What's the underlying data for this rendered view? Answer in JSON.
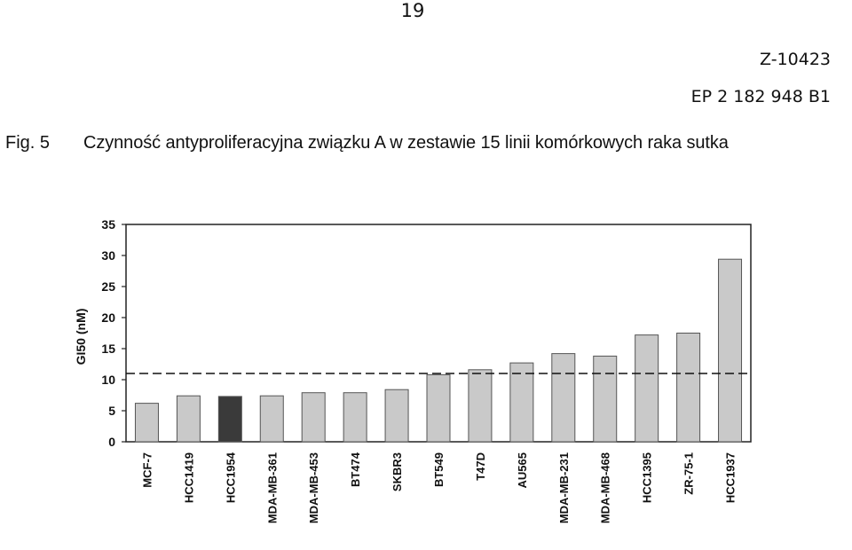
{
  "header": {
    "page_number": "19",
    "doc_code": "Z-10423",
    "patent_number": "EP 2 182 948 B1"
  },
  "figure": {
    "label": "Fig. 5",
    "title": "Czynność antyproliferacyjna związku A w zestawie 15 linii komórkowych raka sutka"
  },
  "chart_data": {
    "type": "bar",
    "ylabel": "GI50 (nM)",
    "xlabel": "",
    "ylim": [
      0,
      35
    ],
    "yticks": [
      0,
      5,
      10,
      15,
      20,
      25,
      30,
      35
    ],
    "grid": false,
    "reference_line": {
      "value": 11,
      "style": "dashed"
    },
    "categories": [
      "MCF-7",
      "HCC1419",
      "HCC1954",
      "MDA-MB-361",
      "MDA-MB-453",
      "BT474",
      "SKBR3",
      "BT549",
      "T47D",
      "AU565",
      "MDA-MB-231",
      "MDA-MB-468",
      "HCC1395",
      "ZR-75-1",
      "HCC1937"
    ],
    "values": [
      6.2,
      7.4,
      7.3,
      7.4,
      7.9,
      7.9,
      8.4,
      10.8,
      11.6,
      12.7,
      14.2,
      13.8,
      17.2,
      17.5,
      29.4
    ],
    "bar_colors": [
      "#c9c9c9",
      "#c9c9c9",
      "#3a3a3a",
      "#c9c9c9",
      "#c9c9c9",
      "#c9c9c9",
      "#c9c9c9",
      "#c9c9c9",
      "#c9c9c9",
      "#c9c9c9",
      "#c9c9c9",
      "#c9c9c9",
      "#c9c9c9",
      "#c9c9c9",
      "#c9c9c9"
    ]
  }
}
